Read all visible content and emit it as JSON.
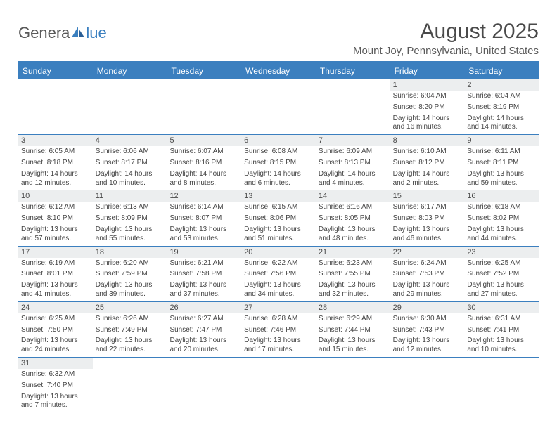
{
  "logo": {
    "text_left": "Genera",
    "text_right": "lue",
    "gray": "#5a5a5a",
    "blue": "#3a7fbf"
  },
  "title": "August 2025",
  "location": "Mount Joy, Pennsylvania, United States",
  "header_bg": "#3b7fbf",
  "daynum_bg": "#eceeef",
  "border_color": "#3b7fbf",
  "day_names": [
    "Sunday",
    "Monday",
    "Tuesday",
    "Wednesday",
    "Thursday",
    "Friday",
    "Saturday"
  ],
  "weeks": [
    [
      {
        "n": "",
        "sr": "",
        "ss": "",
        "dl": ""
      },
      {
        "n": "",
        "sr": "",
        "ss": "",
        "dl": ""
      },
      {
        "n": "",
        "sr": "",
        "ss": "",
        "dl": ""
      },
      {
        "n": "",
        "sr": "",
        "ss": "",
        "dl": ""
      },
      {
        "n": "",
        "sr": "",
        "ss": "",
        "dl": ""
      },
      {
        "n": "1",
        "sr": "Sunrise: 6:04 AM",
        "ss": "Sunset: 8:20 PM",
        "dl": "Daylight: 14 hours and 16 minutes."
      },
      {
        "n": "2",
        "sr": "Sunrise: 6:04 AM",
        "ss": "Sunset: 8:19 PM",
        "dl": "Daylight: 14 hours and 14 minutes."
      }
    ],
    [
      {
        "n": "3",
        "sr": "Sunrise: 6:05 AM",
        "ss": "Sunset: 8:18 PM",
        "dl": "Daylight: 14 hours and 12 minutes."
      },
      {
        "n": "4",
        "sr": "Sunrise: 6:06 AM",
        "ss": "Sunset: 8:17 PM",
        "dl": "Daylight: 14 hours and 10 minutes."
      },
      {
        "n": "5",
        "sr": "Sunrise: 6:07 AM",
        "ss": "Sunset: 8:16 PM",
        "dl": "Daylight: 14 hours and 8 minutes."
      },
      {
        "n": "6",
        "sr": "Sunrise: 6:08 AM",
        "ss": "Sunset: 8:15 PM",
        "dl": "Daylight: 14 hours and 6 minutes."
      },
      {
        "n": "7",
        "sr": "Sunrise: 6:09 AM",
        "ss": "Sunset: 8:13 PM",
        "dl": "Daylight: 14 hours and 4 minutes."
      },
      {
        "n": "8",
        "sr": "Sunrise: 6:10 AM",
        "ss": "Sunset: 8:12 PM",
        "dl": "Daylight: 14 hours and 2 minutes."
      },
      {
        "n": "9",
        "sr": "Sunrise: 6:11 AM",
        "ss": "Sunset: 8:11 PM",
        "dl": "Daylight: 13 hours and 59 minutes."
      }
    ],
    [
      {
        "n": "10",
        "sr": "Sunrise: 6:12 AM",
        "ss": "Sunset: 8:10 PM",
        "dl": "Daylight: 13 hours and 57 minutes."
      },
      {
        "n": "11",
        "sr": "Sunrise: 6:13 AM",
        "ss": "Sunset: 8:09 PM",
        "dl": "Daylight: 13 hours and 55 minutes."
      },
      {
        "n": "12",
        "sr": "Sunrise: 6:14 AM",
        "ss": "Sunset: 8:07 PM",
        "dl": "Daylight: 13 hours and 53 minutes."
      },
      {
        "n": "13",
        "sr": "Sunrise: 6:15 AM",
        "ss": "Sunset: 8:06 PM",
        "dl": "Daylight: 13 hours and 51 minutes."
      },
      {
        "n": "14",
        "sr": "Sunrise: 6:16 AM",
        "ss": "Sunset: 8:05 PM",
        "dl": "Daylight: 13 hours and 48 minutes."
      },
      {
        "n": "15",
        "sr": "Sunrise: 6:17 AM",
        "ss": "Sunset: 8:03 PM",
        "dl": "Daylight: 13 hours and 46 minutes."
      },
      {
        "n": "16",
        "sr": "Sunrise: 6:18 AM",
        "ss": "Sunset: 8:02 PM",
        "dl": "Daylight: 13 hours and 44 minutes."
      }
    ],
    [
      {
        "n": "17",
        "sr": "Sunrise: 6:19 AM",
        "ss": "Sunset: 8:01 PM",
        "dl": "Daylight: 13 hours and 41 minutes."
      },
      {
        "n": "18",
        "sr": "Sunrise: 6:20 AM",
        "ss": "Sunset: 7:59 PM",
        "dl": "Daylight: 13 hours and 39 minutes."
      },
      {
        "n": "19",
        "sr": "Sunrise: 6:21 AM",
        "ss": "Sunset: 7:58 PM",
        "dl": "Daylight: 13 hours and 37 minutes."
      },
      {
        "n": "20",
        "sr": "Sunrise: 6:22 AM",
        "ss": "Sunset: 7:56 PM",
        "dl": "Daylight: 13 hours and 34 minutes."
      },
      {
        "n": "21",
        "sr": "Sunrise: 6:23 AM",
        "ss": "Sunset: 7:55 PM",
        "dl": "Daylight: 13 hours and 32 minutes."
      },
      {
        "n": "22",
        "sr": "Sunrise: 6:24 AM",
        "ss": "Sunset: 7:53 PM",
        "dl": "Daylight: 13 hours and 29 minutes."
      },
      {
        "n": "23",
        "sr": "Sunrise: 6:25 AM",
        "ss": "Sunset: 7:52 PM",
        "dl": "Daylight: 13 hours and 27 minutes."
      }
    ],
    [
      {
        "n": "24",
        "sr": "Sunrise: 6:25 AM",
        "ss": "Sunset: 7:50 PM",
        "dl": "Daylight: 13 hours and 24 minutes."
      },
      {
        "n": "25",
        "sr": "Sunrise: 6:26 AM",
        "ss": "Sunset: 7:49 PM",
        "dl": "Daylight: 13 hours and 22 minutes."
      },
      {
        "n": "26",
        "sr": "Sunrise: 6:27 AM",
        "ss": "Sunset: 7:47 PM",
        "dl": "Daylight: 13 hours and 20 minutes."
      },
      {
        "n": "27",
        "sr": "Sunrise: 6:28 AM",
        "ss": "Sunset: 7:46 PM",
        "dl": "Daylight: 13 hours and 17 minutes."
      },
      {
        "n": "28",
        "sr": "Sunrise: 6:29 AM",
        "ss": "Sunset: 7:44 PM",
        "dl": "Daylight: 13 hours and 15 minutes."
      },
      {
        "n": "29",
        "sr": "Sunrise: 6:30 AM",
        "ss": "Sunset: 7:43 PM",
        "dl": "Daylight: 13 hours and 12 minutes."
      },
      {
        "n": "30",
        "sr": "Sunrise: 6:31 AM",
        "ss": "Sunset: 7:41 PM",
        "dl": "Daylight: 13 hours and 10 minutes."
      }
    ],
    [
      {
        "n": "31",
        "sr": "Sunrise: 6:32 AM",
        "ss": "Sunset: 7:40 PM",
        "dl": "Daylight: 13 hours and 7 minutes."
      },
      {
        "n": "",
        "sr": "",
        "ss": "",
        "dl": ""
      },
      {
        "n": "",
        "sr": "",
        "ss": "",
        "dl": ""
      },
      {
        "n": "",
        "sr": "",
        "ss": "",
        "dl": ""
      },
      {
        "n": "",
        "sr": "",
        "ss": "",
        "dl": ""
      },
      {
        "n": "",
        "sr": "",
        "ss": "",
        "dl": ""
      },
      {
        "n": "",
        "sr": "",
        "ss": "",
        "dl": ""
      }
    ]
  ]
}
